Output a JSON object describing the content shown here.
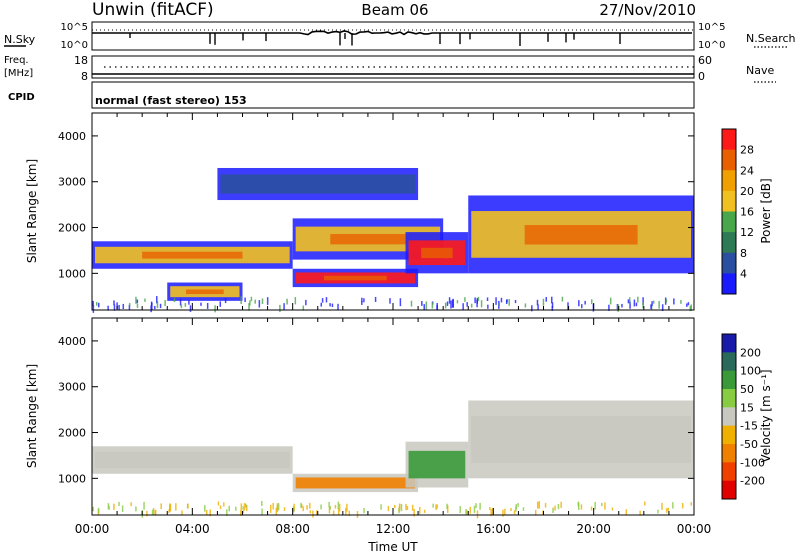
{
  "header": {
    "station": "Unwin (fitACF)",
    "beam": "Beam 06",
    "date": "27/Nov/2010"
  },
  "summary_panels": {
    "nsky": {
      "label": "N.Sky",
      "ticks": [
        "10^5",
        "10^0"
      ],
      "right_label": "N.Search",
      "right_ticks": [
        "10^5",
        "10^0"
      ]
    },
    "freq": {
      "label_line1": "Freq.",
      "label_line2": "[MHz]",
      "ticks": [
        "18",
        "8"
      ],
      "right_label": "Nave",
      "right_ticks": [
        "60",
        "0"
      ]
    },
    "cpid": {
      "label": "CPID",
      "text": "normal (fast stereo) 153"
    }
  },
  "colors": {
    "power": [
      "#1a1aff",
      "#2a4fa0",
      "#2d7a55",
      "#4aa64a",
      "#f0c020",
      "#f0a000",
      "#e86000",
      "#ff1a1a"
    ],
    "velocity": [
      "#e00000",
      "#f04000",
      "#f08000",
      "#f0b000",
      "#c8c8c0",
      "#88cc44",
      "#3a9a3a",
      "#2a6a5a",
      "#1a1aaa"
    ]
  },
  "chart_data": [
    {
      "type": "heatmap",
      "title": "Power",
      "xlabel": "",
      "ylabel": "Slant Range [km]",
      "x_ticks": [
        "00:00",
        "04:00",
        "08:00",
        "12:00",
        "16:00",
        "20:00",
        "00:00"
      ],
      "y_ticks": [
        1000,
        2000,
        3000,
        4000
      ],
      "ylim": [
        200,
        4500
      ],
      "colorbar": {
        "label": "Power [dB]",
        "ticks": [
          4,
          8,
          12,
          16,
          20,
          24,
          28
        ]
      },
      "regions": [
        {
          "t0": 0.0,
          "t1": 8.0,
          "r0": 1100,
          "r1": 1700,
          "level": "medium"
        },
        {
          "t0": 3.0,
          "t1": 6.0,
          "r0": 400,
          "r1": 800,
          "level": "medium"
        },
        {
          "t0": 8.0,
          "t1": 13.0,
          "r0": 700,
          "r1": 1100,
          "level": "high"
        },
        {
          "t0": 8.0,
          "t1": 14.0,
          "r0": 1300,
          "r1": 2200,
          "level": "medium"
        },
        {
          "t0": 12.5,
          "t1": 15.0,
          "r0": 1000,
          "r1": 1900,
          "level": "high"
        },
        {
          "t0": 5.0,
          "t1": 13.0,
          "r0": 2600,
          "r1": 3300,
          "level": "low"
        },
        {
          "t0": 15.0,
          "t1": 24.0,
          "r0": 1000,
          "r1": 2700,
          "level": "medium"
        }
      ]
    },
    {
      "type": "heatmap",
      "title": "Velocity",
      "xlabel": "Time UT",
      "ylabel": "Slant Range [km]",
      "x_ticks": [
        "00:00",
        "04:00",
        "08:00",
        "12:00",
        "16:00",
        "20:00",
        "00:00"
      ],
      "y_ticks": [
        1000,
        2000,
        3000,
        4000
      ],
      "ylim": [
        200,
        4500
      ],
      "colorbar": {
        "label": "Velocity [m s⁻¹]",
        "ticks": [
          200,
          100,
          50,
          15,
          -15,
          -50,
          -100,
          -200
        ]
      },
      "regions": [
        {
          "t0": 0.0,
          "t1": 8.0,
          "r0": 1100,
          "r1": 1700,
          "level": "near zero"
        },
        {
          "t0": 8.0,
          "t1": 13.0,
          "r0": 700,
          "r1": 1100,
          "level": "negative"
        },
        {
          "t0": 12.5,
          "t1": 15.0,
          "r0": 800,
          "r1": 1800,
          "level": "positive"
        },
        {
          "t0": 15.0,
          "t1": 24.0,
          "r0": 1000,
          "r1": 2700,
          "level": "near zero"
        }
      ]
    }
  ]
}
